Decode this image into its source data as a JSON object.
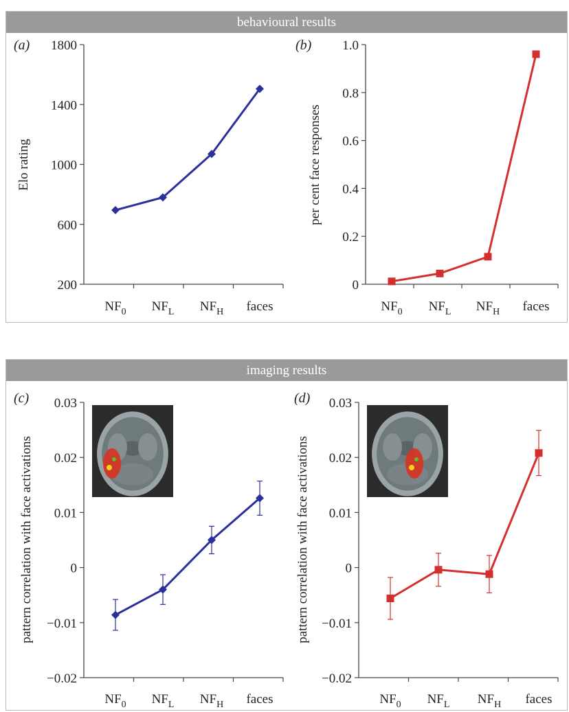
{
  "sections": {
    "behavioural": {
      "title": "behavioural results"
    },
    "imaging": {
      "title": "imaging results"
    }
  },
  "chart_data": [
    {
      "panel": "(a)",
      "type": "line",
      "categories": [
        "NF0",
        "NFL",
        "NFH",
        "faces"
      ],
      "category_labels": [
        {
          "base": "NF",
          "sub": "0"
        },
        {
          "base": "NF",
          "sub": "L"
        },
        {
          "base": "NF",
          "sub": "H"
        },
        {
          "base": "faces",
          "sub": ""
        }
      ],
      "series": [
        {
          "values": [
            695,
            780,
            1070,
            1505
          ],
          "color": "#2a2f9a",
          "marker": "diamond"
        }
      ],
      "ylabel": "Elo rating",
      "ylim": [
        200,
        1800
      ],
      "yticks": [
        200,
        600,
        1000,
        1400,
        1800
      ],
      "ytick_labels": [
        "200",
        "600",
        "1000",
        "1400",
        "1800"
      ]
    },
    {
      "panel": "(b)",
      "type": "line",
      "categories": [
        "NF0",
        "NFL",
        "NFH",
        "faces"
      ],
      "category_labels": [
        {
          "base": "NF",
          "sub": "0"
        },
        {
          "base": "NF",
          "sub": "L"
        },
        {
          "base": "NF",
          "sub": "H"
        },
        {
          "base": "faces",
          "sub": ""
        }
      ],
      "series": [
        {
          "values": [
            0.012,
            0.045,
            0.115,
            0.96
          ],
          "color": "#d32f2f",
          "marker": "square"
        }
      ],
      "ylabel": "per cent face responses",
      "ylim": [
        0,
        1.0
      ],
      "yticks": [
        0,
        0.2,
        0.4,
        0.6,
        0.8,
        1.0
      ],
      "ytick_labels": [
        "0",
        "0.2",
        "0.4",
        "0.6",
        "0.8",
        "1.0"
      ]
    },
    {
      "panel": "(c)",
      "type": "line",
      "categories": [
        "NF0",
        "NFL",
        "NFH",
        "faces"
      ],
      "category_labels": [
        {
          "base": "NF",
          "sub": "0"
        },
        {
          "base": "NF",
          "sub": "L"
        },
        {
          "base": "NF",
          "sub": "H"
        },
        {
          "base": "faces",
          "sub": ""
        }
      ],
      "series": [
        {
          "values": [
            -0.0086,
            -0.004,
            0.005,
            0.0126
          ],
          "errors": [
            0.0028,
            0.0027,
            0.0025,
            0.0031
          ],
          "color": "#2a2f9a",
          "marker": "diamond"
        }
      ],
      "ylabel": "pattern correlation with face activations",
      "ylim": [
        -0.02,
        0.03
      ],
      "yticks": [
        -0.02,
        -0.01,
        0,
        0.01,
        0.02,
        0.03
      ],
      "ytick_labels": [
        "−0.02",
        "−0.01",
        "0",
        "0.01",
        "0.02",
        "0.03"
      ]
    },
    {
      "panel": "(d)",
      "type": "line",
      "categories": [
        "NF0",
        "NFL",
        "NFH",
        "faces"
      ],
      "category_labels": [
        {
          "base": "NF",
          "sub": "0"
        },
        {
          "base": "NF",
          "sub": "L"
        },
        {
          "base": "NF",
          "sub": "H"
        },
        {
          "base": "faces",
          "sub": ""
        }
      ],
      "series": [
        {
          "values": [
            -0.0056,
            -0.0004,
            -0.0012,
            0.0208
          ],
          "errors": [
            0.0038,
            0.003,
            0.0034,
            0.0041
          ],
          "color": "#d32f2f",
          "marker": "square"
        }
      ],
      "ylabel": "pattern correlation with face activations",
      "ylim": [
        -0.02,
        0.03
      ],
      "yticks": [
        -0.02,
        -0.01,
        0,
        0.01,
        0.02,
        0.03
      ],
      "ytick_labels": [
        "−0.02",
        "−0.01",
        "0",
        "0.01",
        "0.02",
        "0.03"
      ]
    }
  ]
}
